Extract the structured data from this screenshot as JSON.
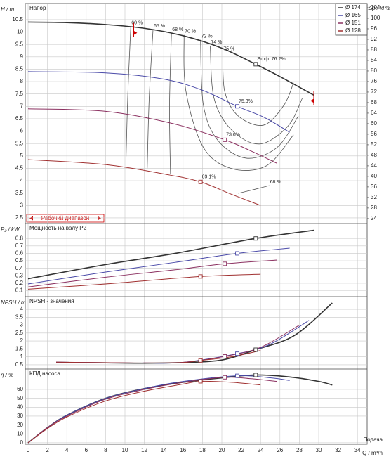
{
  "chart_data": {
    "type": "line",
    "xlabel": "Q / m³/h",
    "xlabel2": "Подача",
    "xlim": [
      -0.29,
      35
    ],
    "xticks": [
      0,
      2,
      4,
      6,
      8,
      10,
      12,
      14,
      16,
      18,
      20,
      22,
      24,
      26,
      28,
      30,
      32,
      34
    ],
    "grid": true,
    "legend": "top-right",
    "operating_range": [
      10.9,
      29.5
    ],
    "operating_range_label": "Рабочий диапазон",
    "series": [
      {
        "name": "Ø 174",
        "color": "#333333",
        "bep_q": 23.5,
        "bep_label": "Эфф. 76.2%"
      },
      {
        "name": "Ø 165",
        "color": "#4a4aa8",
        "bep_q": 21.6,
        "bep_label": "75.3%"
      },
      {
        "name": "Ø 151",
        "color": "#8b3060",
        "bep_q": 20.3,
        "bep_label": "73.6%"
      },
      {
        "name": "Ø 128",
        "color": "#a03030",
        "bep_q": 17.8,
        "bep_label": "69.1%"
      }
    ],
    "panels": [
      {
        "title": "Напор",
        "ylabel": "H / m",
        "ylim": [
          2.27,
          11.15
        ],
        "yticks": [
          2.5,
          3,
          3.5,
          4,
          4.5,
          5,
          5.5,
          6,
          6.5,
          7,
          7.5,
          8,
          8.5,
          9,
          9.5,
          10,
          10.5
        ],
        "y2label": "Δp / kPa",
        "y2lim": [
          22.1,
          105.6
        ],
        "y2ticks": [
          24,
          28,
          32,
          36,
          40,
          44,
          48,
          52,
          56,
          60,
          64,
          68,
          72,
          76,
          80,
          84,
          88,
          92,
          96,
          100,
          104
        ],
        "curves": [
          {
            "x": [
              0,
              4,
              8,
              12,
              16,
              20,
              23.5,
              26,
              29.5
            ],
            "values": [
              10.4,
              10.38,
              10.3,
              10.15,
              9.85,
              9.35,
              8.7,
              8.2,
              7.45
            ]
          },
          {
            "x": [
              0,
              8,
              14,
              18,
              21.6,
              24.4,
              27
            ],
            "values": [
              8.4,
              8.35,
              8.1,
              7.65,
              7.0,
              6.55,
              5.95
            ]
          },
          {
            "x": [
              0,
              8,
              15,
              20.3,
              23,
              25.7
            ],
            "values": [
              6.9,
              6.8,
              6.3,
              5.65,
              5.2,
              4.7
            ]
          },
          {
            "x": [
              0,
              8,
              14.3,
              17.8,
              21,
              24
            ],
            "values": [
              4.85,
              4.65,
              4.25,
              3.95,
              3.45,
              3.0
            ]
          }
        ],
        "iso_efficiency": [
          {
            "label": "60 %",
            "x": [
              10.6,
              10.3,
              10.1
            ],
            "values": [
              10.22,
              7.5,
              4.7
            ]
          },
          {
            "label": "65 %",
            "x": [
              12.9,
              12.5,
              12.3
            ],
            "values": [
              10.1,
              7.3,
              4.5
            ]
          },
          {
            "label": "68 %",
            "x": [
              14.8,
              14.6,
              14.7
            ],
            "values": [
              9.96,
              7.0,
              4.26
            ]
          },
          {
            "label": "70 %",
            "x": [
              16.1,
              16.3,
              18.1,
              21,
              24.6,
              27.4
            ],
            "values": [
              9.88,
              7.6,
              5.34,
              4.49,
              4.6,
              5.85
            ]
          },
          {
            "label": "72 %",
            "x": [
              17.8,
              18.1,
              19.6,
              22.5,
              25.7,
              27.9
            ],
            "values": [
              9.68,
              7.04,
              5.62,
              4.91,
              5.34,
              6.61
            ]
          },
          {
            "label": "74 %",
            "x": [
              18.8,
              19.2,
              21,
              23.9,
              26.8,
              28.3
            ],
            "values": [
              9.45,
              7.32,
              6.05,
              5.48,
              6.19,
              7.32
            ]
          },
          {
            "label": "75 %",
            "x": [
              20.1,
              20.3,
              21.7,
              24.3,
              26.4,
              27.4
            ],
            "values": [
              9.17,
              7.6,
              6.61,
              6.24,
              7.04,
              7.95
            ]
          },
          {
            "label": "68 %",
            "x": [
              24.9,
              23.2,
              21.7
            ],
            "values": [
              3.8,
              3.63,
              3.49
            ]
          }
        ]
      },
      {
        "title": "Мощность на валу P2",
        "ylabel": "P₂ / kW",
        "ylim": [
          0.02,
          1.0
        ],
        "yticks": [
          0.1,
          0.2,
          0.3,
          0.4,
          0.5,
          0.6,
          0.7,
          0.8
        ],
        "curves": [
          {
            "x": [
              0,
              8,
              15.2,
              23.5,
              29.5
            ],
            "values": [
              0.26,
              0.45,
              0.6,
              0.8,
              0.91
            ]
          },
          {
            "x": [
              0,
              8,
              15.2,
              21.6,
              27
            ],
            "values": [
              0.19,
              0.35,
              0.48,
              0.6,
              0.67
            ]
          },
          {
            "x": [
              0,
              8,
              15.2,
              20.3,
              25.7
            ],
            "values": [
              0.15,
              0.28,
              0.38,
              0.46,
              0.51
            ]
          },
          {
            "x": [
              0,
              8,
              17.8,
              24
            ],
            "values": [
              0.12,
              0.19,
              0.29,
              0.32
            ]
          }
        ]
      },
      {
        "title": "NPSH - значения",
        "ylabel": "NPSH / m",
        "ylim": [
          0.23,
          4.8
        ],
        "yticks": [
          0.5,
          1,
          1.5,
          2,
          2.5,
          3,
          3.5,
          4
        ],
        "curves": [
          {
            "x": [
              2.9,
              8,
              12,
              16,
              20,
              23.5,
              27.5,
              31.4
            ],
            "values": [
              0.65,
              0.62,
              0.6,
              0.64,
              0.8,
              1.45,
              2.35,
              4.4
            ]
          },
          {
            "x": [
              2.9,
              8,
              12,
              16,
              21.6,
              25,
              29
            ],
            "values": [
              0.66,
              0.63,
              0.61,
              0.65,
              1.2,
              1.8,
              3.3
            ]
          },
          {
            "x": [
              2.9,
              8,
              12,
              16,
              20.3,
              24,
              28
            ],
            "values": [
              0.66,
              0.63,
              0.61,
              0.65,
              1.03,
              1.6,
              3.0
            ]
          },
          {
            "x": [
              2.9,
              8,
              12,
              16,
              17.8,
              21,
              24
            ],
            "values": [
              0.66,
              0.63,
              0.61,
              0.64,
              0.77,
              1.0,
              1.4
            ]
          }
        ]
      },
      {
        "title": "КПД насоса",
        "ylabel": "η / %",
        "ylim": [
          -1.6,
          82.9
        ],
        "yticks": [
          0,
          10,
          20,
          30,
          40,
          50,
          60
        ],
        "curves": [
          {
            "x": [
              0,
              2,
              4,
              8,
              12,
              16,
              20,
              23.5,
              27,
              30,
              31.4
            ],
            "values": [
              0,
              17,
              31,
              50,
              61,
              68,
              73,
              76.2,
              74,
              69,
              65
            ]
          },
          {
            "x": [
              0,
              2,
              4,
              8,
              12,
              16,
              21.6,
              25,
              27
            ],
            "values": [
              0,
              17,
              31,
              50,
              61,
              69,
              75.3,
              73,
              70
            ]
          },
          {
            "x": [
              0,
              2,
              4,
              8,
              12,
              16,
              20.3,
              23,
              25.7
            ],
            "values": [
              0,
              17,
              30,
              49,
              60,
              68,
              73.6,
              72,
              69
            ]
          },
          {
            "x": [
              0,
              2,
              4,
              8,
              12,
              16,
              17.8,
              21,
              24
            ],
            "values": [
              0,
              16,
              29,
              47,
              58,
              66,
              69.1,
              68,
              65
            ]
          }
        ]
      }
    ]
  }
}
